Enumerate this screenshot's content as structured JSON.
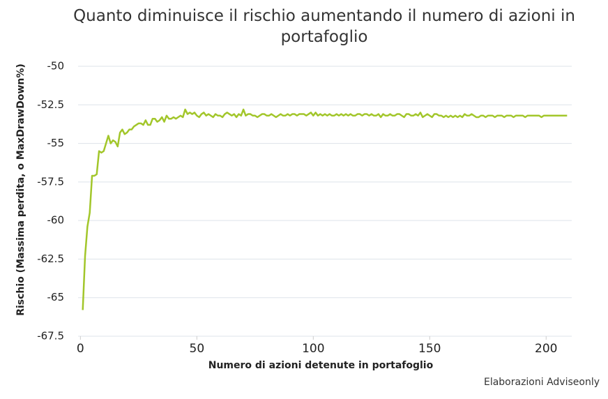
{
  "chart_data": {
    "type": "line",
    "title": "Quanto diminuisce il rischio aumentando il numero di azioni in portafoglio",
    "x_label": "Numero di azioni detenute in portafoglio",
    "y_label": "Rischio (Massima perdita, o MaxDrawDown%)",
    "source": "Elaborazioni Adviseonly",
    "grid": true,
    "xlim": [
      -1,
      211
    ],
    "xticks": [
      0,
      50,
      100,
      150,
      200
    ],
    "ylim": [
      -67.5,
      -50
    ],
    "yticks": [
      -50,
      -52.5,
      -55,
      -57.5,
      -60,
      -62.5,
      -65,
      -67.5
    ],
    "series": [
      {
        "color": "#a2c62a",
        "x": [
          1,
          2,
          3,
          4,
          5,
          6,
          7,
          8,
          9,
          10,
          11,
          12,
          13,
          14,
          15,
          16,
          17,
          18,
          19,
          20,
          21,
          22,
          23,
          24,
          25,
          26,
          27,
          28,
          29,
          30,
          31,
          32,
          33,
          34,
          35,
          36,
          37,
          38,
          39,
          40,
          41,
          42,
          43,
          44,
          45,
          46,
          47,
          48,
          49,
          50,
          51,
          52,
          53,
          54,
          55,
          56,
          57,
          58,
          59,
          60,
          61,
          62,
          63,
          64,
          65,
          66,
          67,
          68,
          69,
          70,
          71,
          72,
          73,
          74,
          75,
          76,
          77,
          78,
          79,
          80,
          81,
          82,
          83,
          84,
          85,
          86,
          87,
          88,
          89,
          90,
          91,
          92,
          93,
          94,
          95,
          96,
          97,
          98,
          99,
          100,
          101,
          102,
          103,
          104,
          105,
          106,
          107,
          108,
          109,
          110,
          111,
          112,
          113,
          114,
          115,
          116,
          117,
          118,
          119,
          120,
          121,
          122,
          123,
          124,
          125,
          126,
          127,
          128,
          129,
          130,
          131,
          132,
          133,
          134,
          135,
          136,
          137,
          138,
          139,
          140,
          141,
          142,
          143,
          144,
          145,
          146,
          147,
          148,
          149,
          150,
          151,
          152,
          153,
          154,
          155,
          156,
          157,
          158,
          159,
          160,
          161,
          162,
          163,
          164,
          165,
          166,
          167,
          168,
          169,
          170,
          171,
          172,
          173,
          174,
          175,
          176,
          177,
          178,
          179,
          180,
          181,
          182,
          183,
          184,
          185,
          186,
          187,
          188,
          189,
          190,
          191,
          192,
          193,
          194,
          195,
          196,
          197,
          198,
          199,
          200,
          201,
          202,
          203,
          204,
          205,
          206,
          207,
          208,
          209
        ],
        "values": [
          -65.8,
          -62.3,
          -60.4,
          -59.5,
          -57.1,
          -57.1,
          -57.0,
          -55.5,
          -55.6,
          -55.5,
          -55.0,
          -54.5,
          -55.0,
          -54.8,
          -54.9,
          -55.2,
          -54.3,
          -54.1,
          -54.4,
          -54.3,
          -54.1,
          -54.1,
          -53.9,
          -53.8,
          -53.7,
          -53.7,
          -53.8,
          -53.5,
          -53.8,
          -53.8,
          -53.4,
          -53.4,
          -53.6,
          -53.5,
          -53.3,
          -53.6,
          -53.2,
          -53.4,
          -53.4,
          -53.3,
          -53.4,
          -53.3,
          -53.2,
          -53.3,
          -52.8,
          -53.1,
          -53.0,
          -53.1,
          -53.0,
          -53.2,
          -53.3,
          -53.1,
          -53.0,
          -53.2,
          -53.1,
          -53.2,
          -53.3,
          -53.1,
          -53.2,
          -53.2,
          -53.3,
          -53.1,
          -53.0,
          -53.1,
          -53.2,
          -53.1,
          -53.3,
          -53.1,
          -53.2,
          -52.8,
          -53.2,
          -53.1,
          -53.1,
          -53.2,
          -53.2,
          -53.3,
          -53.2,
          -53.1,
          -53.1,
          -53.2,
          -53.2,
          -53.1,
          -53.2,
          -53.3,
          -53.2,
          -53.1,
          -53.2,
          -53.2,
          -53.1,
          -53.2,
          -53.1,
          -53.1,
          -53.2,
          -53.1,
          -53.1,
          -53.1,
          -53.2,
          -53.1,
          -53.0,
          -53.2,
          -53.0,
          -53.2,
          -53.1,
          -53.2,
          -53.1,
          -53.2,
          -53.1,
          -53.2,
          -53.2,
          -53.1,
          -53.2,
          -53.1,
          -53.2,
          -53.1,
          -53.2,
          -53.1,
          -53.2,
          -53.2,
          -53.1,
          -53.1,
          -53.2,
          -53.1,
          -53.1,
          -53.2,
          -53.1,
          -53.2,
          -53.2,
          -53.1,
          -53.3,
          -53.1,
          -53.2,
          -53.2,
          -53.1,
          -53.2,
          -53.2,
          -53.1,
          -53.1,
          -53.2,
          -53.3,
          -53.1,
          -53.1,
          -53.2,
          -53.2,
          -53.1,
          -53.2,
          -53.0,
          -53.3,
          -53.2,
          -53.1,
          -53.2,
          -53.3,
          -53.1,
          -53.1,
          -53.2,
          -53.2,
          -53.3,
          -53.2,
          -53.3,
          -53.2,
          -53.3,
          -53.2,
          -53.3,
          -53.2,
          -53.3,
          -53.1,
          -53.2,
          -53.2,
          -53.1,
          -53.2,
          -53.3,
          -53.3,
          -53.2,
          -53.2,
          -53.3,
          -53.2,
          -53.2,
          -53.2,
          -53.3,
          -53.2,
          -53.2,
          -53.2,
          -53.3,
          -53.2,
          -53.2,
          -53.2,
          -53.3,
          -53.2,
          -53.2,
          -53.2,
          -53.2,
          -53.3,
          -53.2,
          -53.2,
          -53.2,
          -53.2,
          -53.2,
          -53.2,
          -53.3,
          -53.2,
          -53.2,
          -53.2,
          -53.2,
          -53.2,
          -53.2,
          -53.2,
          -53.2,
          -53.2,
          -53.2,
          -53.2
        ]
      }
    ]
  }
}
